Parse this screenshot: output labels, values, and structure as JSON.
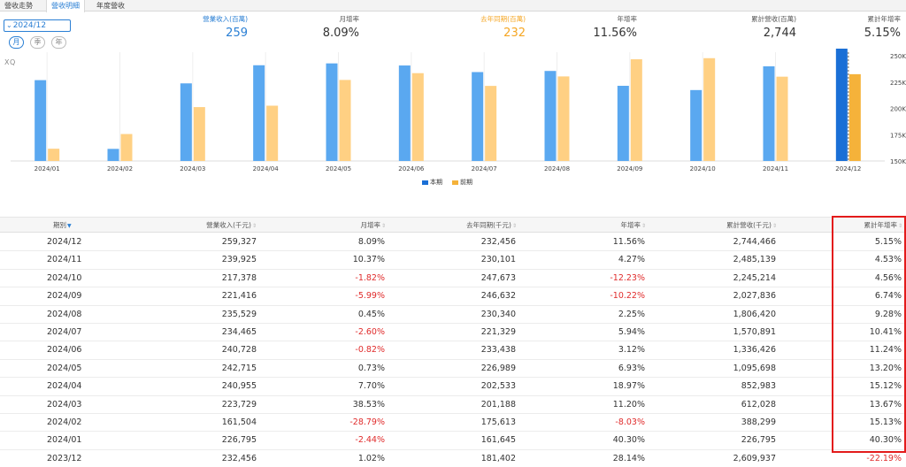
{
  "tabs": [
    "營收走勢",
    "營收明細",
    "年度營收"
  ],
  "active_tab": 1,
  "period_select": "2024/12",
  "pills": [
    "月",
    "季",
    "年"
  ],
  "active_pill": 0,
  "watermark": "XQ",
  "summary": [
    {
      "label": "營業收入(百萬)",
      "value": "259",
      "tone": "blue"
    },
    {
      "label": "月增率",
      "value": "8.09%",
      "tone": "normal"
    },
    {
      "label": "去年同期(百萬)",
      "value": "232",
      "tone": "orange"
    },
    {
      "label": "年增率",
      "value": "11.56%",
      "tone": "normal"
    },
    {
      "label": "累計營收(百萬)",
      "value": "2,744",
      "tone": "normal"
    },
    {
      "label": "累計年增率",
      "value": "5.15%",
      "tone": "normal"
    }
  ],
  "colors": {
    "current": "#5aa8f0",
    "current_highlight": "#1a6fd6",
    "previous": "#ffd083",
    "previous_highlight": "#f5b23a",
    "negative": "#e02b2b",
    "highlight_box": "#e31b1b"
  },
  "legend": {
    "current": "本期",
    "previous": "前期"
  },
  "chart_data": {
    "type": "bar",
    "categories": [
      "2024/01",
      "2024/02",
      "2024/03",
      "2024/04",
      "2024/05",
      "2024/06",
      "2024/07",
      "2024/08",
      "2024/09",
      "2024/10",
      "2024/11",
      "2024/12"
    ],
    "series": [
      {
        "name": "本期",
        "values": [
          226795,
          161504,
          223729,
          240955,
          242715,
          240728,
          234465,
          235529,
          221416,
          217378,
          239925,
          259327
        ]
      },
      {
        "name": "前期",
        "values": [
          161645,
          175613,
          201188,
          202533,
          226989,
          233438,
          221329,
          230340,
          246632,
          247673,
          230101,
          232456
        ]
      }
    ],
    "ylim": [
      150000,
      250000
    ],
    "yticks": [
      "150K",
      "175K",
      "200K",
      "225K",
      "250K"
    ],
    "ytick_values": [
      150000,
      175000,
      200000,
      225000,
      250000
    ],
    "grid": "vertical",
    "legend_position": "bottom-center"
  },
  "table": {
    "columns": [
      "期別",
      "營業收入(千元)",
      "月增率",
      "去年同期(千元)",
      "年增率",
      "累計營收(千元)",
      "累計年增率"
    ],
    "rows": [
      [
        "2024/12",
        "259,327",
        "8.09%",
        "232,456",
        "11.56%",
        "2,744,466",
        "5.15%"
      ],
      [
        "2024/11",
        "239,925",
        "10.37%",
        "230,101",
        "4.27%",
        "2,485,139",
        "4.53%"
      ],
      [
        "2024/10",
        "217,378",
        "-1.82%",
        "247,673",
        "-12.23%",
        "2,245,214",
        "4.56%"
      ],
      [
        "2024/09",
        "221,416",
        "-5.99%",
        "246,632",
        "-10.22%",
        "2,027,836",
        "6.74%"
      ],
      [
        "2024/08",
        "235,529",
        "0.45%",
        "230,340",
        "2.25%",
        "1,806,420",
        "9.28%"
      ],
      [
        "2024/07",
        "234,465",
        "-2.60%",
        "221,329",
        "5.94%",
        "1,570,891",
        "10.41%"
      ],
      [
        "2024/06",
        "240,728",
        "-0.82%",
        "233,438",
        "3.12%",
        "1,336,426",
        "11.24%"
      ],
      [
        "2024/05",
        "242,715",
        "0.73%",
        "226,989",
        "6.93%",
        "1,095,698",
        "13.20%"
      ],
      [
        "2024/04",
        "240,955",
        "7.70%",
        "202,533",
        "18.97%",
        "852,983",
        "15.12%"
      ],
      [
        "2024/03",
        "223,729",
        "38.53%",
        "201,188",
        "11.20%",
        "612,028",
        "13.67%"
      ],
      [
        "2024/02",
        "161,504",
        "-28.79%",
        "175,613",
        "-8.03%",
        "388,299",
        "15.13%"
      ],
      [
        "2024/01",
        "226,795",
        "-2.44%",
        "161,645",
        "40.30%",
        "226,795",
        "40.30%"
      ],
      [
        "2023/12",
        "232,456",
        "1.02%",
        "181,402",
        "28.14%",
        "2,609,937",
        "-22.19%"
      ]
    ]
  }
}
